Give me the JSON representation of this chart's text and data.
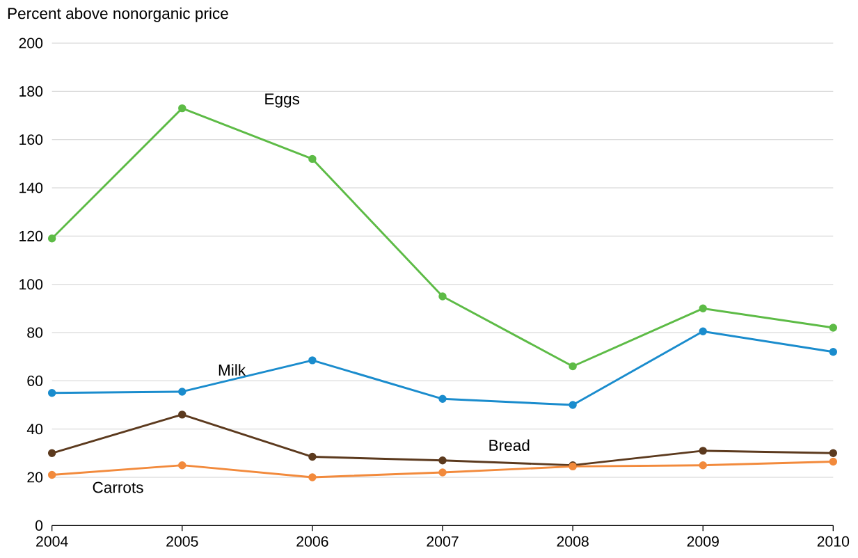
{
  "chart_data": {
    "type": "line",
    "ylabel": "Percent above nonorganic price",
    "x": [
      2004,
      2005,
      2006,
      2007,
      2008,
      2009,
      2010
    ],
    "series": [
      {
        "name": "Eggs",
        "color": "#5dbb46",
        "values": [
          119,
          173,
          152,
          95,
          66,
          90,
          82
        ]
      },
      {
        "name": "Milk",
        "color": "#1a8ccd",
        "values": [
          55,
          55.5,
          68.5,
          52.5,
          50,
          80.5,
          72
        ]
      },
      {
        "name": "Bread",
        "color": "#5c3a1e",
        "values": [
          30,
          46,
          28.5,
          27,
          25,
          31,
          30
        ]
      },
      {
        "name": "Carrots",
        "color": "#f28a3c",
        "values": [
          21,
          25,
          20,
          22,
          24.5,
          25,
          26.5
        ]
      }
    ],
    "xlim": [
      2004,
      2010
    ],
    "ylim": [
      0,
      200
    ],
    "xticks": [
      2004,
      2005,
      2006,
      2007,
      2008,
      2009,
      2010
    ],
    "yticks": [
      0,
      20,
      40,
      60,
      80,
      100,
      120,
      140,
      160,
      180,
      200
    ],
    "grid": "y",
    "marker": "circle",
    "line_style": "solid"
  }
}
